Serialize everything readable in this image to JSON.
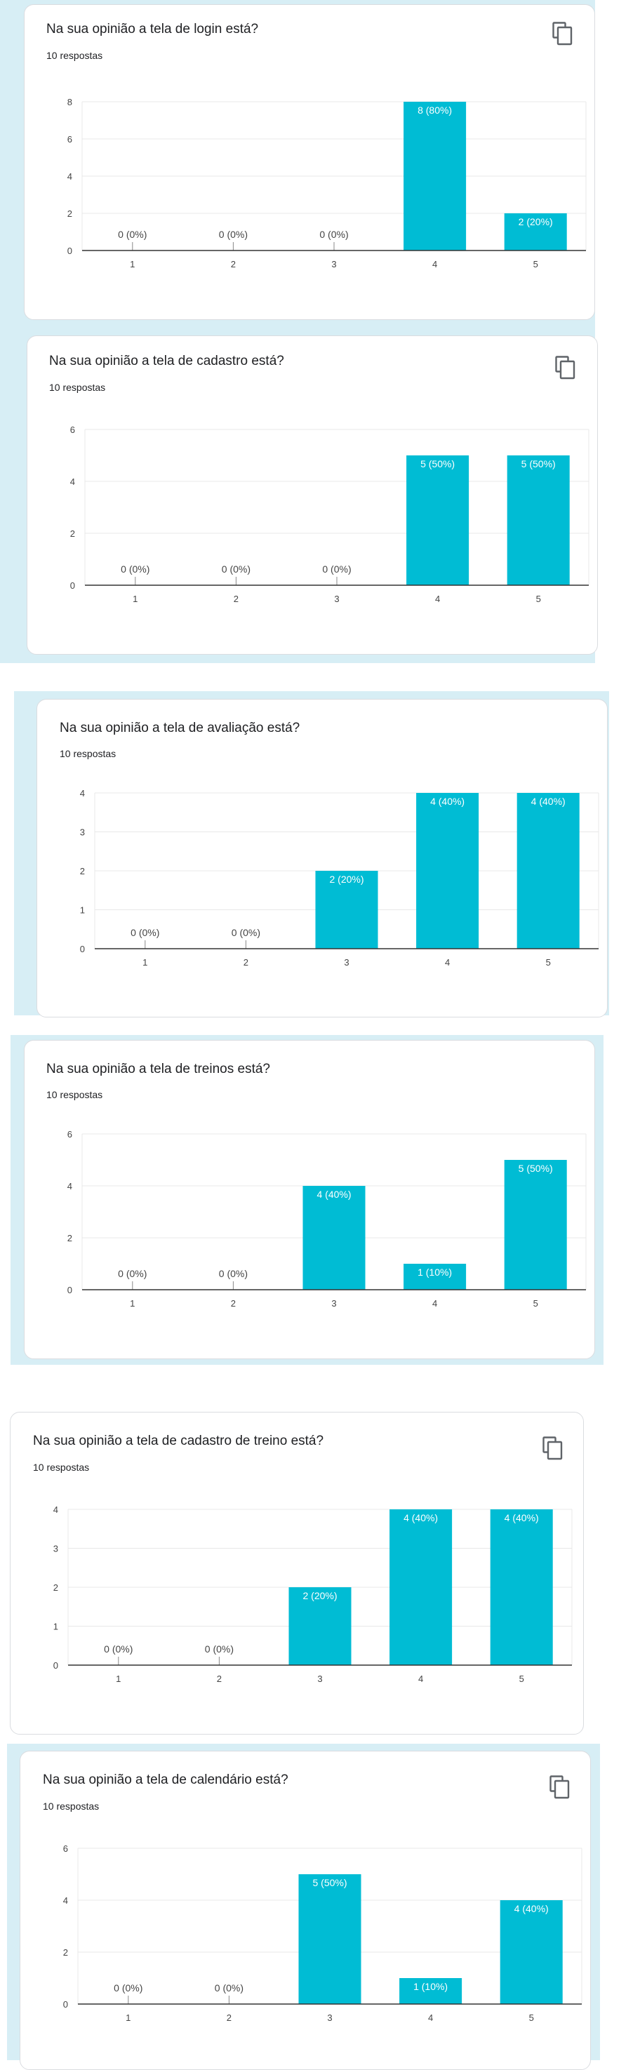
{
  "colors": {
    "bar": "#00bcd4",
    "band": "#d7eef5",
    "grid": "#e8e8e8",
    "axis": "#333333"
  },
  "icons": {
    "copy": "copy-icon"
  },
  "cards": [
    {
      "title": "Na sua opinião a tela de login está?",
      "responses": "10 respostas",
      "copy_icon": true,
      "chart_data": {
        "type": "bar",
        "categories": [
          "1",
          "2",
          "3",
          "4",
          "5"
        ],
        "values": [
          0,
          0,
          0,
          8,
          2
        ],
        "labels": [
          "0 (0%)",
          "0 (0%)",
          "0 (0%)",
          "8 (80%)",
          "2 (20%)"
        ],
        "yticks": [
          "0",
          "2",
          "4",
          "6",
          "8"
        ],
        "ylim": [
          0,
          8
        ]
      }
    },
    {
      "title": "Na sua opinião a tela de cadastro está?",
      "responses": "10 respostas",
      "copy_icon": true,
      "chart_data": {
        "type": "bar",
        "categories": [
          "1",
          "2",
          "3",
          "4",
          "5"
        ],
        "values": [
          0,
          0,
          0,
          5,
          5
        ],
        "labels": [
          "0 (0%)",
          "0 (0%)",
          "0 (0%)",
          "5 (50%)",
          "5 (50%)"
        ],
        "yticks": [
          "0",
          "2",
          "4",
          "6"
        ],
        "ylim": [
          0,
          6
        ]
      }
    },
    {
      "title": "Na sua opinião a tela de avaliação está?",
      "responses": "10 respostas",
      "copy_icon": false,
      "chart_data": {
        "type": "bar",
        "categories": [
          "1",
          "2",
          "3",
          "4",
          "5"
        ],
        "values": [
          0,
          0,
          2,
          4,
          4
        ],
        "labels": [
          "0 (0%)",
          "0 (0%)",
          "2 (20%)",
          "4 (40%)",
          "4 (40%)"
        ],
        "yticks": [
          "0",
          "1",
          "2",
          "3",
          "4"
        ],
        "ylim": [
          0,
          4
        ]
      }
    },
    {
      "title": "Na sua opinião a tela de treinos está?",
      "responses": "10 respostas",
      "copy_icon": false,
      "chart_data": {
        "type": "bar",
        "categories": [
          "1",
          "2",
          "3",
          "4",
          "5"
        ],
        "values": [
          0,
          0,
          4,
          1,
          5
        ],
        "labels": [
          "0 (0%)",
          "0 (0%)",
          "4 (40%)",
          "1 (10%)",
          "5 (50%)"
        ],
        "yticks": [
          "0",
          "2",
          "4",
          "6"
        ],
        "ylim": [
          0,
          6
        ]
      }
    },
    {
      "title": "Na sua opinião a tela de cadastro de treino está?",
      "responses": "10 respostas",
      "copy_icon": true,
      "chart_data": {
        "type": "bar",
        "categories": [
          "1",
          "2",
          "3",
          "4",
          "5"
        ],
        "values": [
          0,
          0,
          2,
          4,
          4
        ],
        "labels": [
          "0 (0%)",
          "0 (0%)",
          "2 (20%)",
          "4 (40%)",
          "4 (40%)"
        ],
        "yticks": [
          "0",
          "1",
          "2",
          "3",
          "4"
        ],
        "ylim": [
          0,
          4
        ]
      }
    },
    {
      "title": "Na sua opinião a tela de calendário está?",
      "responses": "10 respostas",
      "copy_icon": true,
      "chart_data": {
        "type": "bar",
        "categories": [
          "1",
          "2",
          "3",
          "4",
          "5"
        ],
        "values": [
          0,
          0,
          5,
          1,
          4
        ],
        "labels": [
          "0 (0%)",
          "0 (0%)",
          "5 (50%)",
          "1 (10%)",
          "4 (40%)"
        ],
        "yticks": [
          "0",
          "2",
          "4",
          "6"
        ],
        "ylim": [
          0,
          6
        ]
      }
    }
  ]
}
